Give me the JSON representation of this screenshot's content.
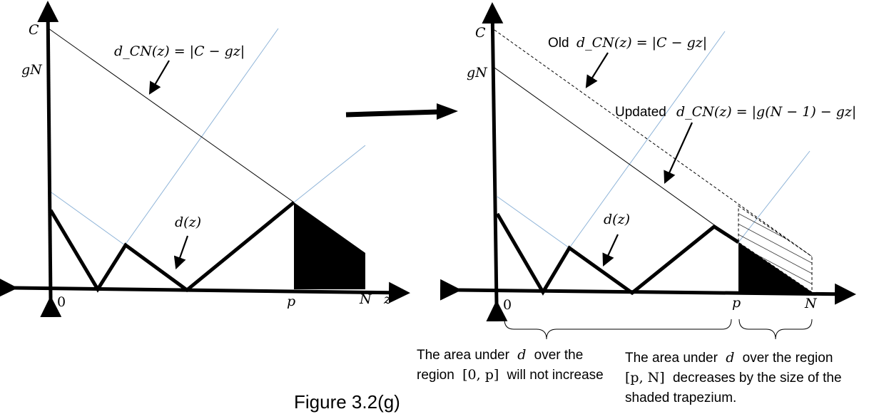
{
  "left_panel": {
    "labels": {
      "C": "C",
      "gN": "gN",
      "zero": "0",
      "p": "p",
      "N": "N",
      "z": "z",
      "dz": "d(z)",
      "dcn_math": "d_CN(z) = |C − gz|"
    }
  },
  "right_panel": {
    "labels": {
      "C": "C",
      "gN": "gN",
      "zero": "0",
      "p": "p",
      "N": "N",
      "dz": "d(z)",
      "old_word": "Old",
      "old_math": "d_CN(z) = |C − gz|",
      "updated_word": "Updated",
      "updated_math": "d_CN(z) = |g(N − 1) − gz|"
    },
    "note_left": {
      "line1_pre": "The area under",
      "line1_var": "d",
      "line1_post": "over the",
      "line2_pre": "region",
      "line2_math": "[0, p]",
      "line2_post": "will not increase"
    },
    "note_right": {
      "line1_pre": "The area under",
      "line1_var": "d",
      "line1_post": "over the region",
      "line2_math": "[p, N]",
      "line2_post": "decreases by the size of the",
      "line3": "shaded trapezium."
    }
  },
  "caption": "Figure 3.2(g)",
  "colors": {
    "ink": "#000000",
    "blue_line": "#8fb4d8"
  }
}
